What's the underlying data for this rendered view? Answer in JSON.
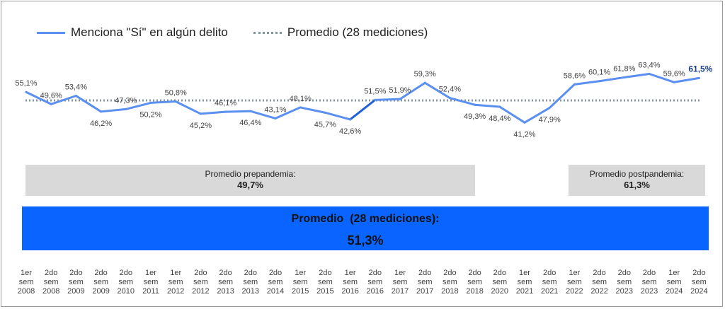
{
  "legend": {
    "series_label": "Menciona \"Sí\" en algún delito",
    "avg_label": "Promedio (28 mediciones)"
  },
  "boxes": {
    "pre_label": "Promedio prepandemia:",
    "pre_value": "49,7%",
    "post_label": "Promedio postpandemia:",
    "post_value": "61,3%",
    "avg_label": "Promedio  (28 mediciones):",
    "avg_value": "51,3%"
  },
  "colors": {
    "line": "#5b8ff0",
    "line_dark_segment": "#1f62d6",
    "avg_line": "#8197a6",
    "highlight_label": "#1f3f86",
    "avg_box": "#0a64ff",
    "gray_box": "#d9d9d9"
  },
  "chart_data": {
    "type": "line",
    "categories": [
      [
        "1er",
        "sem",
        "2008"
      ],
      [
        "2do",
        "sem",
        "2008"
      ],
      [
        "2do",
        "sem",
        "2009"
      ],
      [
        "2do",
        "sem",
        "2009"
      ],
      [
        "2do",
        "sem",
        "2010"
      ],
      [
        "1er",
        "sem",
        "2011"
      ],
      [
        "1er",
        "sem",
        "2012"
      ],
      [
        "2do",
        "sem",
        "2012"
      ],
      [
        "2do",
        "sem",
        "2013"
      ],
      [
        "2do",
        "sem",
        "2013"
      ],
      [
        "2do",
        "sem",
        "2014"
      ],
      [
        "1er",
        "sem",
        "2015"
      ],
      [
        "2do",
        "sem",
        "2015"
      ],
      [
        "1er",
        "sem",
        "2016"
      ],
      [
        "2do",
        "sem",
        "2016"
      ],
      [
        "1er",
        "sem",
        "2017"
      ],
      [
        "2do",
        "sem",
        "2017"
      ],
      [
        "2do",
        "sem",
        "2018"
      ],
      [
        "2do",
        "sem",
        "2018"
      ],
      [
        "2do",
        "sem",
        "2020"
      ],
      [
        "1er",
        "sem",
        "2021"
      ],
      [
        "2do",
        "sem",
        "2021"
      ],
      [
        "1er",
        "sem",
        "2022"
      ],
      [
        "2do",
        "sem",
        "2022"
      ],
      [
        "2do",
        "sem",
        "2023"
      ],
      [
        "2do",
        "sem",
        "2023"
      ],
      [
        "1er",
        "sem",
        "2024"
      ],
      [
        "2do",
        "sem",
        "2024"
      ]
    ],
    "series": [
      {
        "name": "Menciona \"Sí\" en algún delito",
        "values": [
          55.1,
          49.6,
          53.4,
          46.2,
          47.3,
          50.2,
          50.8,
          45.2,
          46.1,
          46.4,
          43.1,
          48.1,
          45.7,
          42.6,
          51.5,
          51.9,
          59.3,
          52.4,
          49.3,
          48.4,
          41.2,
          47.9,
          58.6,
          60.1,
          61.8,
          63.4,
          59.6,
          61.5
        ],
        "labels": [
          "55,1%",
          "49,6%",
          "53,4%",
          "46,2%",
          "47,3%",
          "50,2%",
          "50,8%",
          "45,2%",
          "46,1%",
          "46,4%",
          "43,1%",
          "48,1%",
          "45,7%",
          "42,6%",
          "51,5%",
          "51,9%",
          "59,3%",
          "52,4%",
          "49,3%",
          "48,4%",
          "41,2%",
          "47,9%",
          "58,6%",
          "60,1%",
          "61,8%",
          "63,4%",
          "59,6%",
          "61,5%"
        ]
      }
    ],
    "average": 51.3,
    "ylim": [
      30,
      70
    ]
  }
}
